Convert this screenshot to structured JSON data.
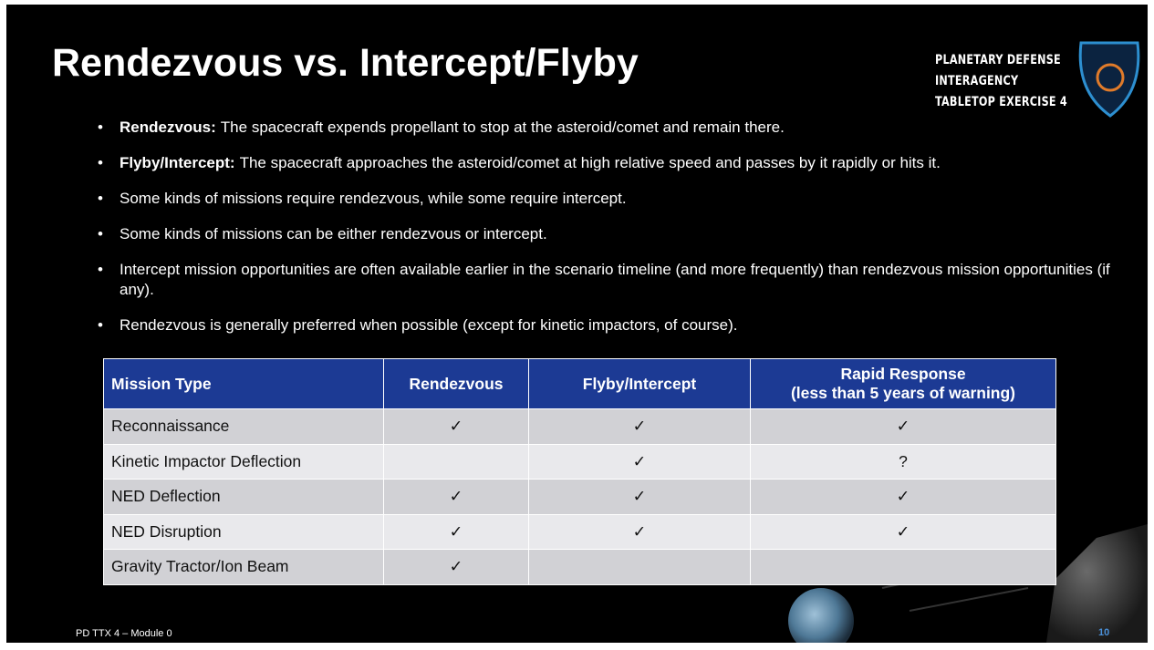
{
  "header": {
    "title": "Rendezvous vs. Intercept/Flyby",
    "logo_lines": [
      "PLANETARY DEFENSE",
      "INTERAGENCY",
      "TABLETOP EXERCISE 4"
    ]
  },
  "bullets": [
    {
      "lead": "Rendezvous:",
      "text": "The spacecraft expends propellant to stop at the asteroid/comet and remain there."
    },
    {
      "lead": "Flyby/Intercept:",
      "text": "The spacecraft approaches the asteroid/comet at high relative speed and passes by it rapidly or hits it."
    },
    {
      "lead": null,
      "text": "Some kinds of missions require rendezvous, while some require intercept."
    },
    {
      "lead": null,
      "text": "Some kinds of missions can be either rendezvous or intercept."
    },
    {
      "lead": null,
      "text": "Intercept mission opportunities are often available earlier in the scenario timeline (and more frequently) than rendezvous mission opportunities (if any)."
    },
    {
      "lead": null,
      "text": "Rendezvous is generally preferred when possible (except for kinetic impactors, of course)."
    }
  ],
  "table": {
    "columns": [
      [
        "Mission Type"
      ],
      [
        "Rendezvous"
      ],
      [
        "Flyby/Intercept"
      ],
      [
        "Rapid Response",
        "(less than 5 years of warning)"
      ]
    ],
    "rows": [
      [
        "Reconnaissance",
        "✓",
        "✓",
        "✓"
      ],
      [
        "Kinetic Impactor Deflection",
        null,
        "✓",
        "?"
      ],
      [
        "NED Deflection",
        "✓",
        "✓",
        "✓"
      ],
      [
        "NED Disruption",
        "✓",
        "✓",
        "✓"
      ],
      [
        "Gravity Tractor/Ion Beam",
        "✓",
        null,
        null
      ]
    ]
  },
  "footer": {
    "text": "PD TTX 4 – Module 0",
    "page": 10
  }
}
